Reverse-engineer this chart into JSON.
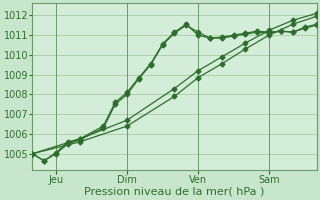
{
  "xlabel": "Pression niveau de la mer( hPa )",
  "ylim": [
    1004.2,
    1012.6
  ],
  "xlim": [
    0,
    24
  ],
  "yticks": [
    1005,
    1006,
    1007,
    1008,
    1009,
    1010,
    1011,
    1012
  ],
  "xtick_positions": [
    2,
    8,
    14,
    20
  ],
  "xtick_labels": [
    "Jeu",
    "Dim",
    "Ven",
    "Sam"
  ],
  "vline_positions": [
    2,
    8,
    14,
    20
  ],
  "bg_color": "#c8e6cc",
  "plot_bg_color": "#d4edd8",
  "grid_color": "#9ec49e",
  "line_color": "#2d6e2d",
  "line1_x": [
    0,
    1,
    2,
    3,
    4,
    6,
    7,
    8,
    9,
    10,
    11,
    12,
    13,
    14,
    15,
    16,
    17,
    18,
    19,
    20,
    21,
    22,
    23,
    24
  ],
  "line1_y": [
    1005.0,
    1004.65,
    1005.0,
    1005.5,
    1005.7,
    1006.3,
    1007.5,
    1008.0,
    1008.8,
    1009.5,
    1010.5,
    1011.1,
    1011.5,
    1011.15,
    1010.85,
    1010.85,
    1010.95,
    1011.05,
    1011.15,
    1011.1,
    1011.2,
    1011.15,
    1011.35,
    1011.5
  ],
  "line2_x": [
    0,
    1,
    2,
    3,
    4,
    6,
    7,
    8,
    9,
    10,
    11,
    12,
    13,
    14,
    15,
    16,
    17,
    18,
    19,
    20,
    21,
    22,
    23,
    24
  ],
  "line2_y": [
    1005.0,
    1004.65,
    1005.05,
    1005.6,
    1005.75,
    1006.4,
    1007.6,
    1008.1,
    1008.85,
    1009.55,
    1010.55,
    1011.15,
    1011.55,
    1011.0,
    1010.85,
    1010.9,
    1011.0,
    1011.1,
    1011.2,
    1011.15,
    1011.2,
    1011.15,
    1011.4,
    1011.55
  ],
  "line3_x": [
    0,
    4,
    8,
    12,
    14,
    16,
    18,
    20,
    22,
    24
  ],
  "line3_y": [
    1005.0,
    1005.75,
    1006.7,
    1008.3,
    1009.2,
    1009.9,
    1010.6,
    1011.25,
    1011.75,
    1012.1
  ],
  "line4_x": [
    0,
    4,
    8,
    12,
    14,
    16,
    18,
    20,
    22,
    24
  ],
  "line4_y": [
    1005.0,
    1005.6,
    1006.4,
    1007.9,
    1008.85,
    1009.55,
    1010.3,
    1011.0,
    1011.55,
    1011.95
  ]
}
